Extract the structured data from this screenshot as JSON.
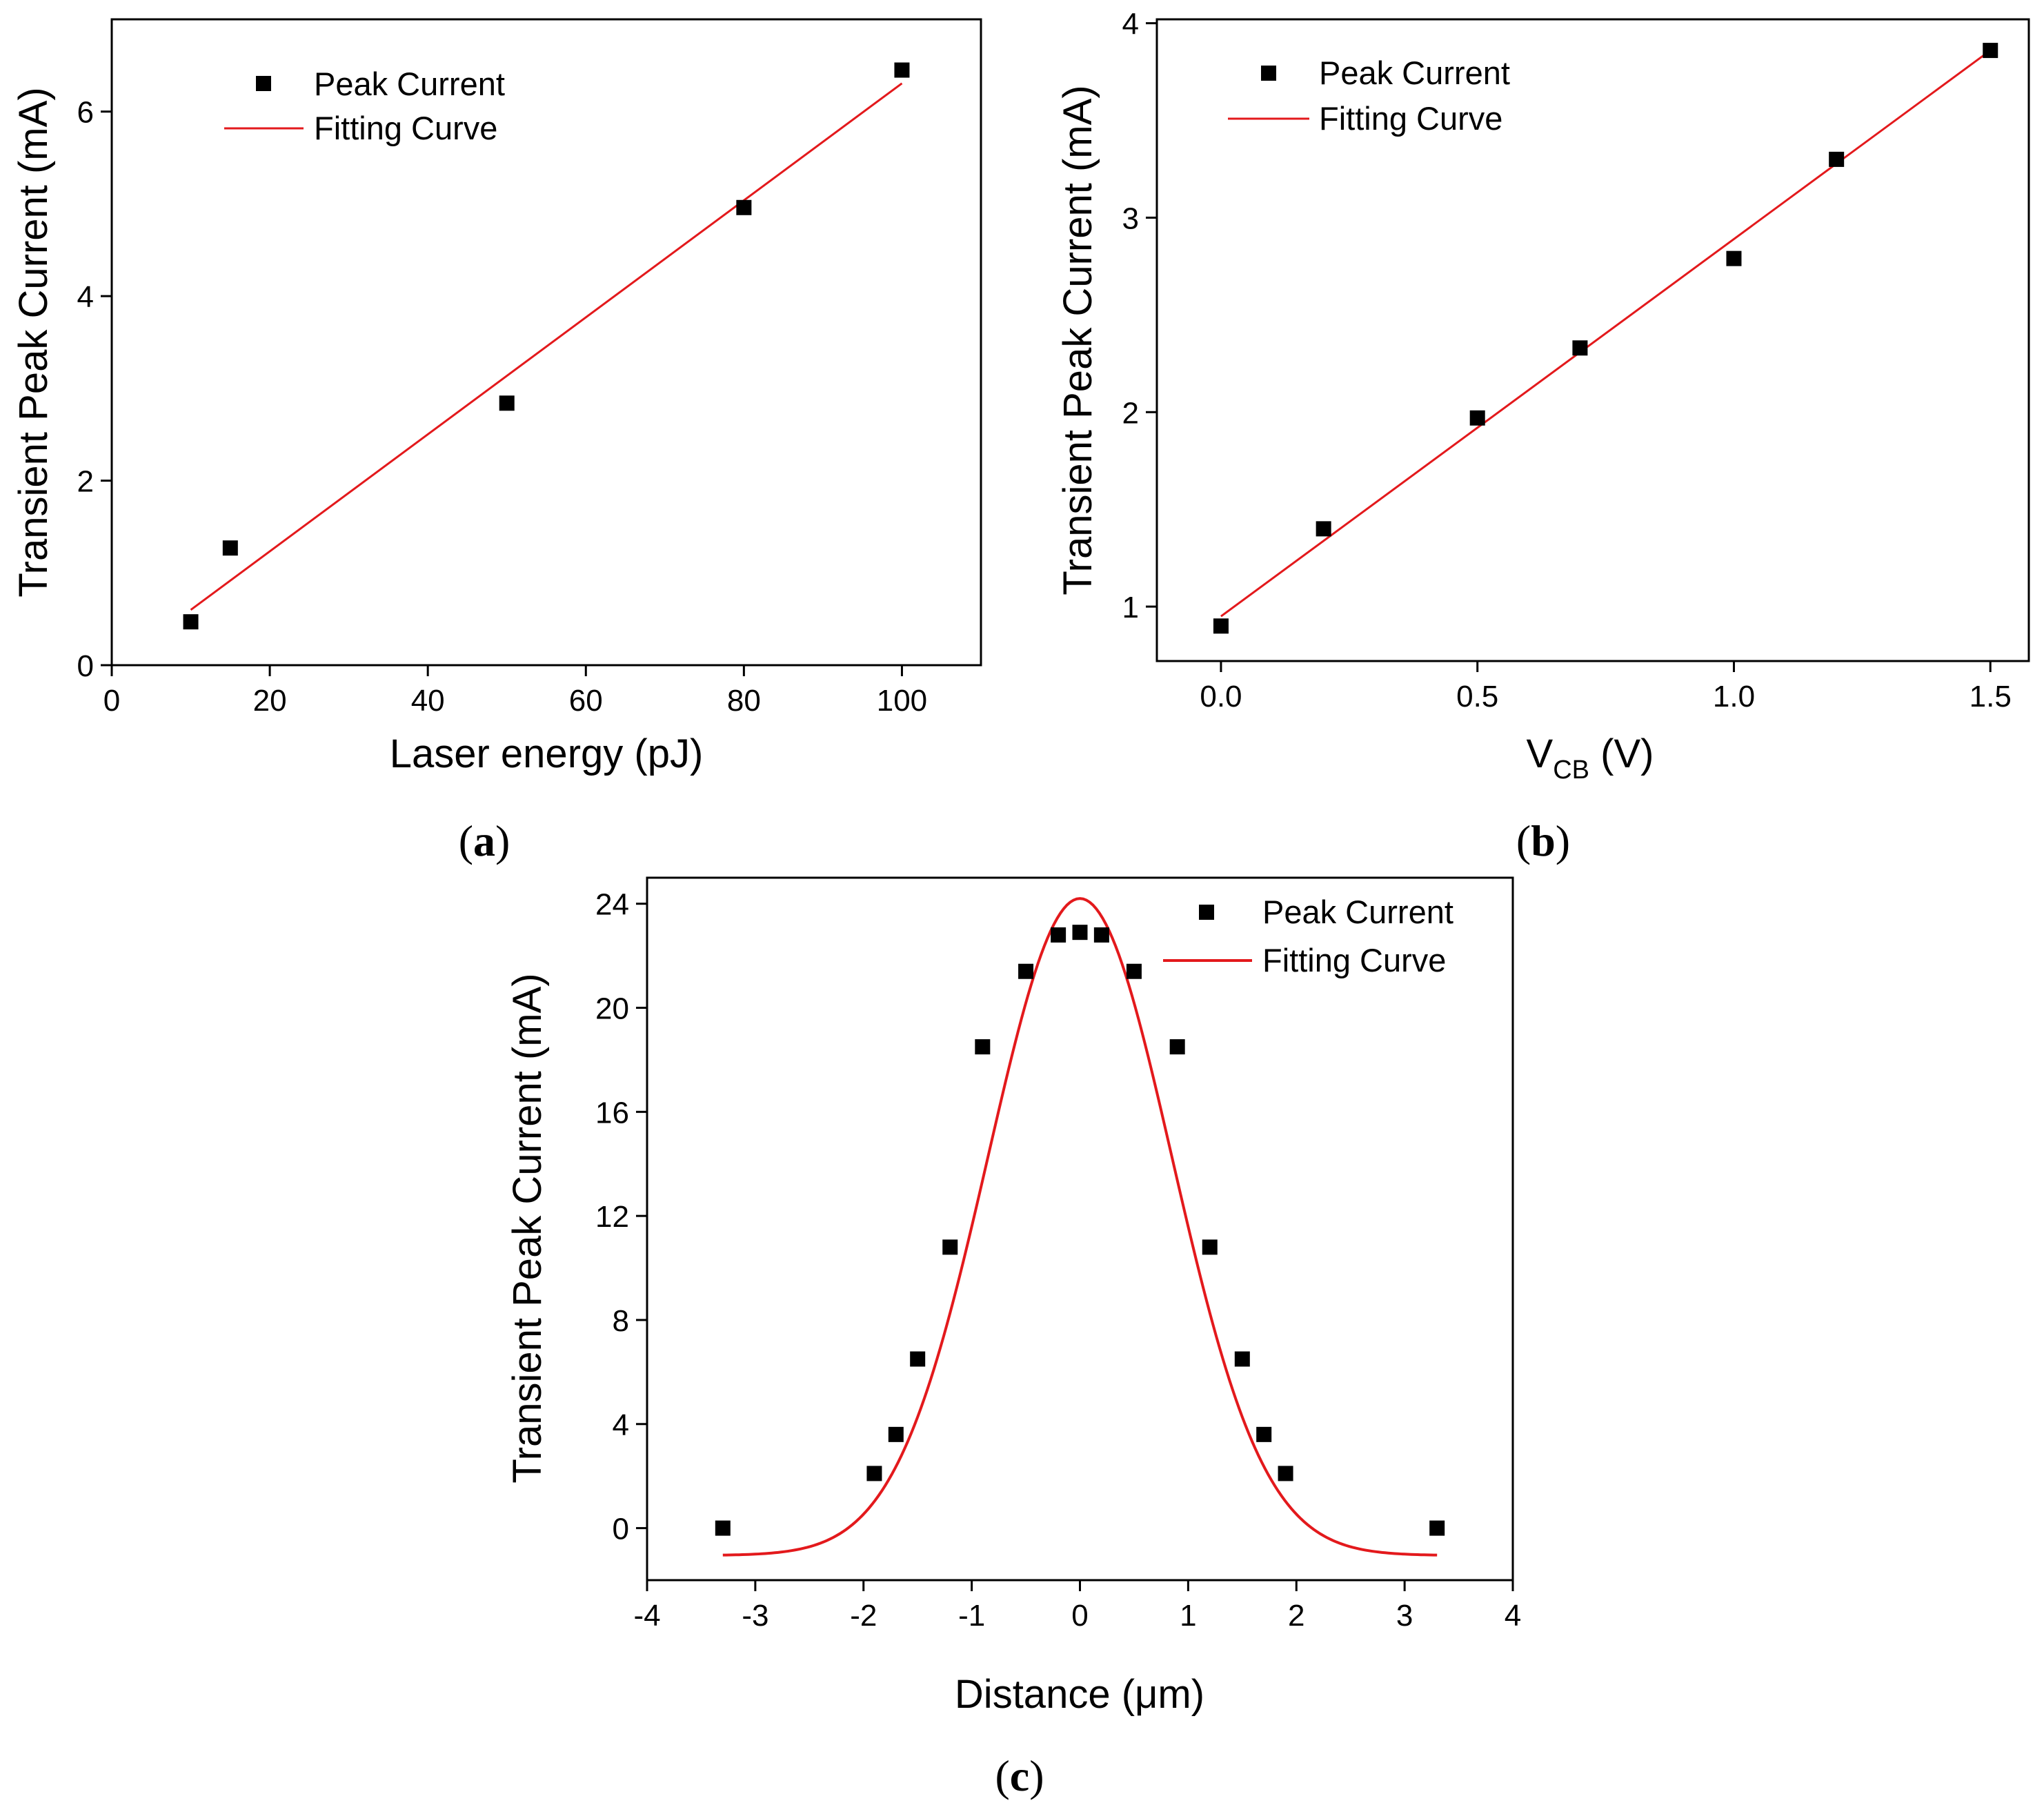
{
  "colors": {
    "marker": "#000000",
    "fit": "#e3191c",
    "axis": "#000000"
  },
  "chart_data": [
    {
      "id": "a",
      "type": "scatter",
      "panel_label": "a",
      "xlabel": "Laser energy (pJ)",
      "ylabel": "Transient Peak Current (mA)",
      "xlim": [
        0,
        110
      ],
      "ylim": [
        0,
        7
      ],
      "xticks": [
        0,
        20,
        40,
        60,
        80,
        100
      ],
      "yticks": [
        0,
        2,
        4,
        6
      ],
      "xtick_labels": [
        "0",
        "20",
        "40",
        "60",
        "80",
        "100"
      ],
      "ytick_labels": [
        "0",
        "2",
        "4",
        "6"
      ],
      "legend": [
        "Peak Current",
        "Fitting Curve"
      ],
      "series": [
        {
          "name": "Peak Current",
          "kind": "points",
          "x": [
            10,
            15,
            50,
            80,
            100
          ],
          "y": [
            0.47,
            1.27,
            2.84,
            4.96,
            6.45
          ]
        },
        {
          "name": "Fitting Curve",
          "kind": "linear",
          "slope": 0.0634,
          "intercept": -0.0341,
          "x_range": [
            10,
            100
          ]
        }
      ]
    },
    {
      "id": "b",
      "type": "scatter",
      "panel_label": "b",
      "xlabel_main": "V",
      "xlabel_sub": "CB",
      "xlabel_unit": " (V)",
      "ylabel": "Transient Peak Current (mA)",
      "xlim": [
        -0.125,
        1.575
      ],
      "ylim": [
        0.72,
        4.02
      ],
      "xticks": [
        0.0,
        0.5,
        1.0,
        1.5
      ],
      "yticks": [
        1,
        2,
        3,
        4
      ],
      "xtick_labels": [
        "0.0",
        "0.5",
        "1.0",
        "1.5"
      ],
      "ytick_labels": [
        "1",
        "2",
        "3",
        "4"
      ],
      "legend": [
        "Peak Current",
        "Fitting Curve"
      ],
      "series": [
        {
          "name": "Peak Current",
          "kind": "points",
          "x": [
            0.0,
            0.2,
            0.5,
            0.7,
            1.0,
            1.2,
            1.5
          ],
          "y": [
            0.9,
            1.4,
            1.97,
            2.33,
            2.79,
            3.3,
            3.86
          ]
        },
        {
          "name": "Fitting Curve",
          "kind": "linear",
          "slope": 1.94,
          "intercept": 0.95,
          "x_range": [
            0.0,
            1.5
          ]
        }
      ]
    },
    {
      "id": "c",
      "type": "scatter",
      "panel_label": "c",
      "xlabel": "Distance (μm)",
      "ylabel": "Transient Peak Current (mA)",
      "xlim": [
        -4,
        4
      ],
      "ylim": [
        -2,
        25
      ],
      "xticks": [
        -4,
        -3,
        -2,
        -1,
        0,
        1,
        2,
        3,
        4
      ],
      "yticks": [
        0,
        4,
        8,
        12,
        16,
        20,
        24
      ],
      "xtick_labels": [
        "-4",
        "-3",
        "-2",
        "-1",
        "0",
        "1",
        "2",
        "3",
        "4"
      ],
      "ytick_labels": [
        "0",
        "4",
        "8",
        "12",
        "16",
        "20",
        "24"
      ],
      "legend": [
        "Peak Current",
        "Fitting Curve"
      ],
      "series": [
        {
          "name": "Peak Current",
          "kind": "points",
          "x": [
            -3.3,
            -1.9,
            -1.7,
            -1.5,
            -1.2,
            -0.9,
            -0.5,
            -0.2,
            0.0,
            0.2,
            0.5,
            0.9,
            1.2,
            1.5,
            1.7,
            1.9,
            3.3
          ],
          "y": [
            0.0,
            2.1,
            3.6,
            6.5,
            10.8,
            18.5,
            21.4,
            22.8,
            22.9,
            22.8,
            21.4,
            18.5,
            10.8,
            6.5,
            3.6,
            2.1,
            0.0
          ]
        },
        {
          "name": "Fitting Curve",
          "kind": "gaussian",
          "baseline": -1.05,
          "amplitude": 25.25,
          "center": 0.0,
          "sigma": 0.85,
          "x_range": [
            -3.3,
            3.3
          ]
        }
      ]
    }
  ]
}
